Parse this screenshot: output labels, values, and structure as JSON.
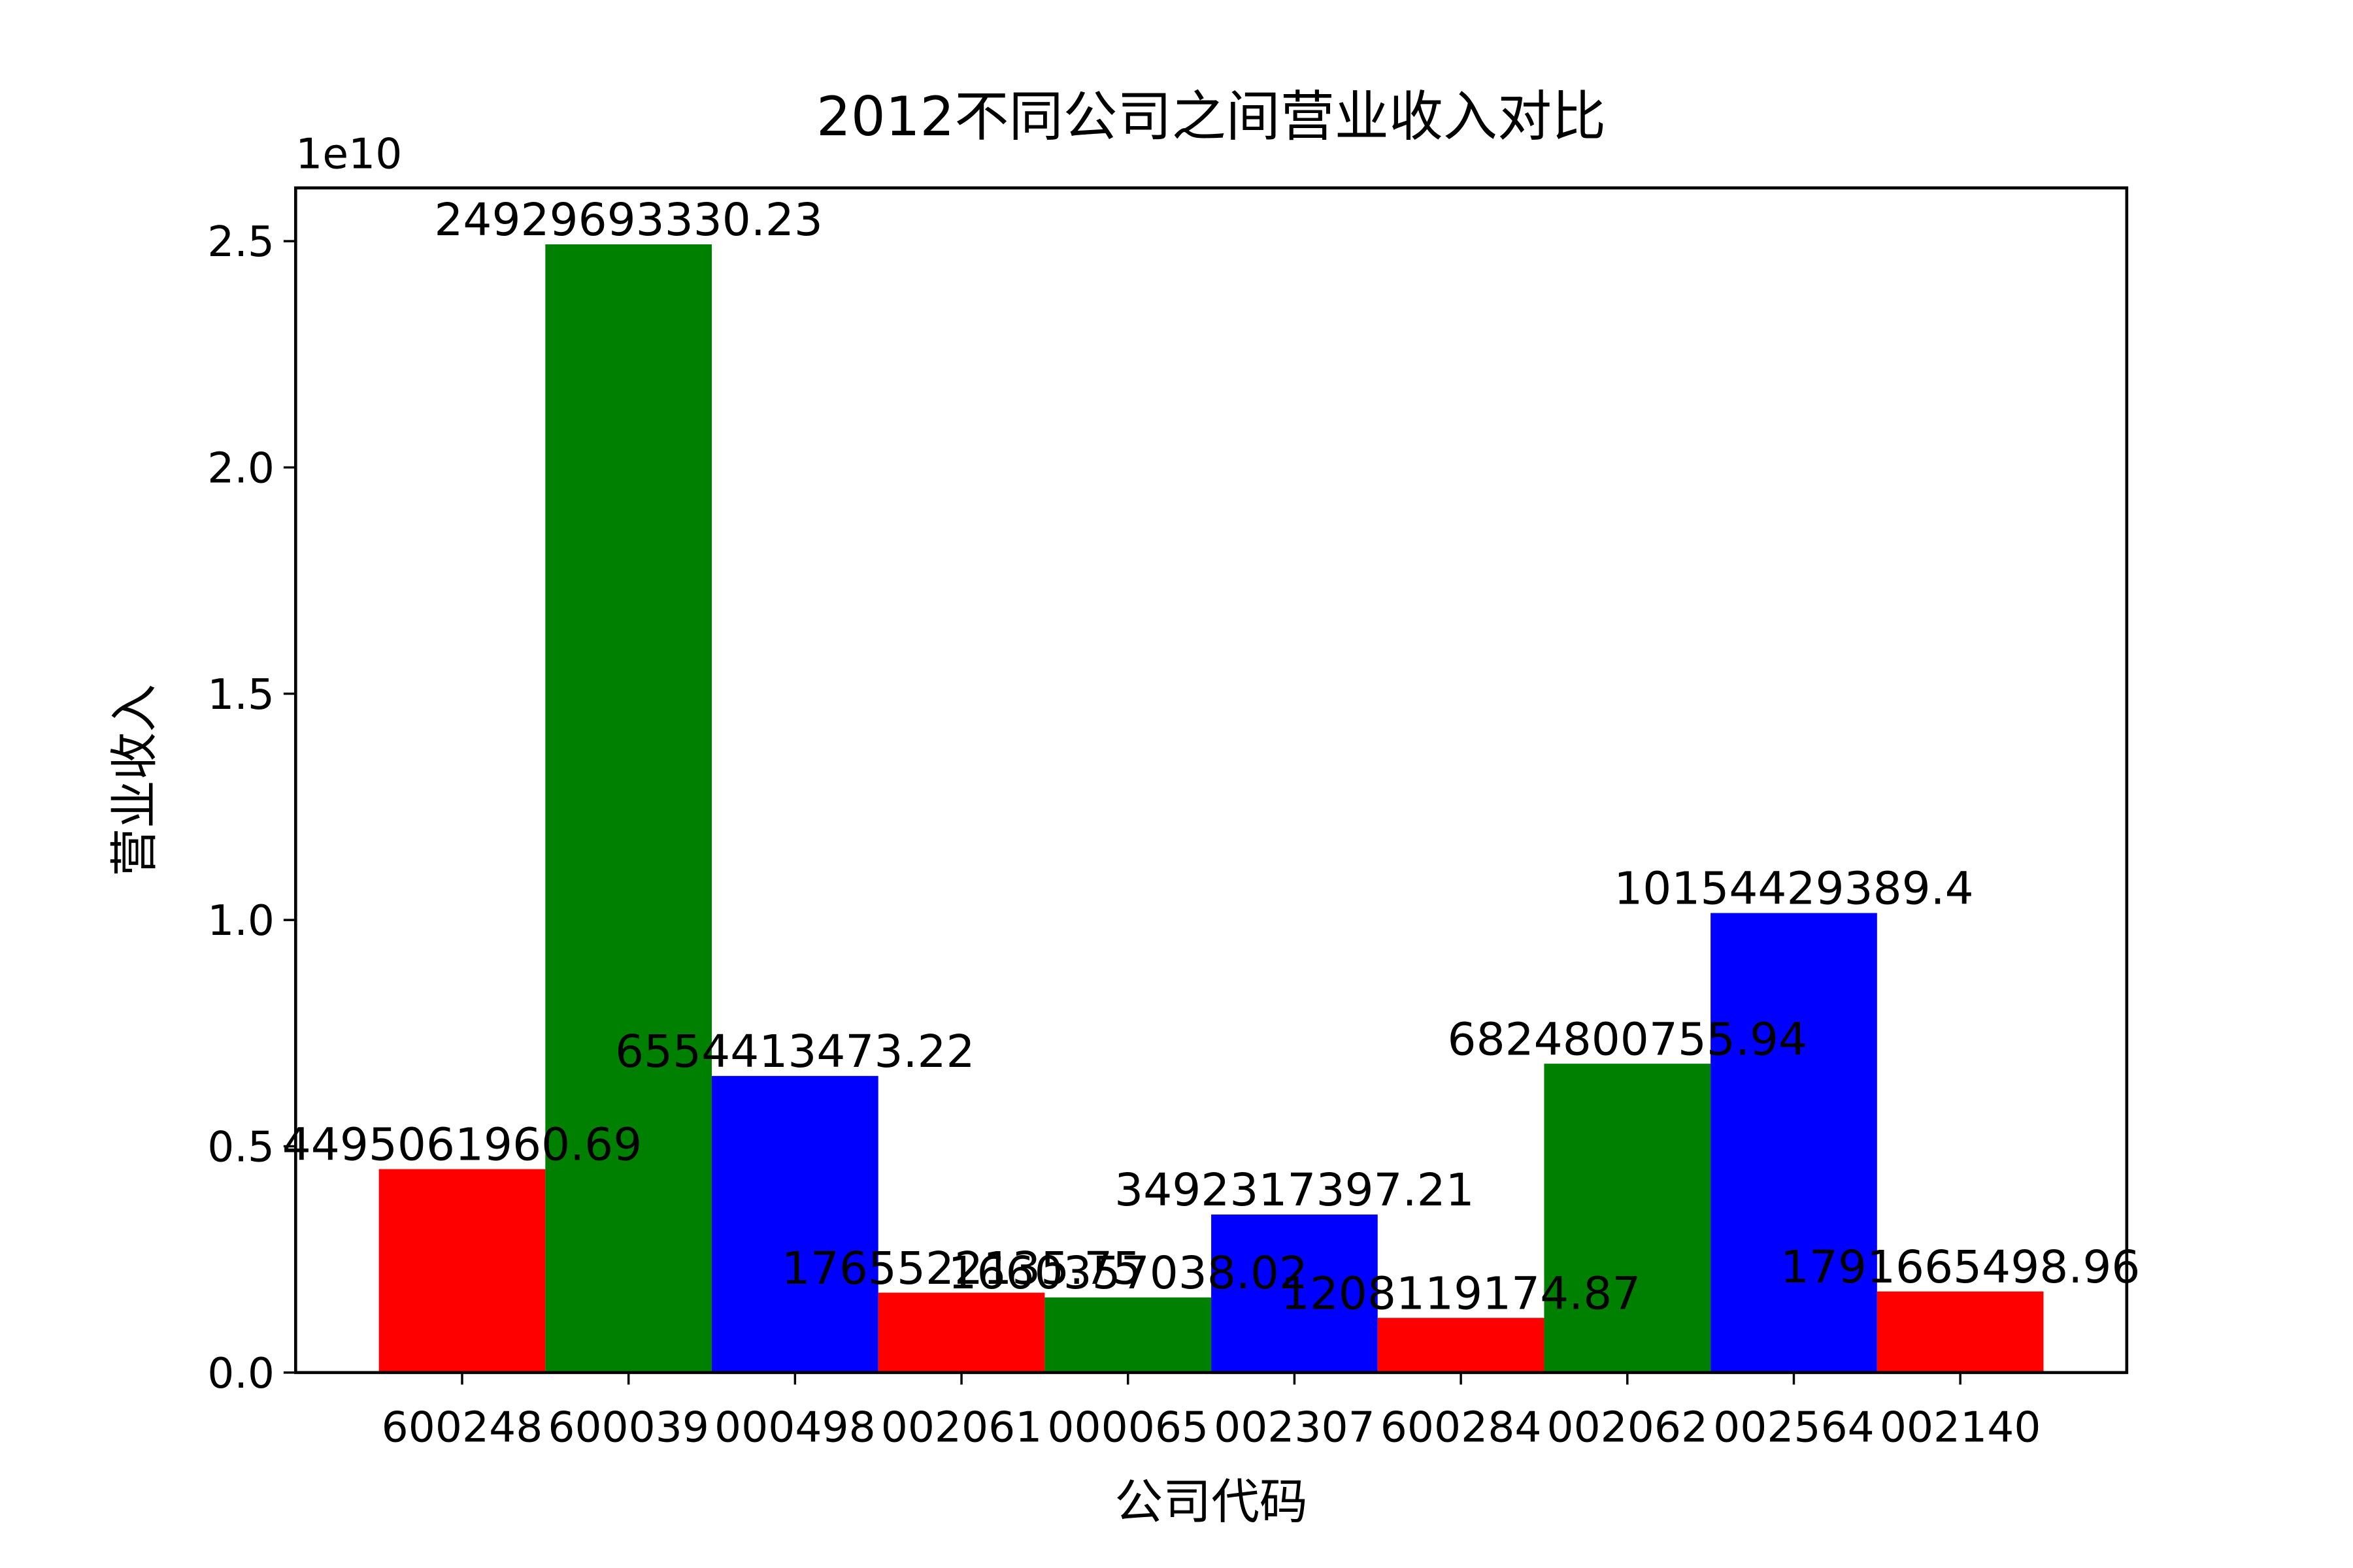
{
  "chart_data": {
    "type": "bar",
    "title": "2012不同公司之间营业收入对比",
    "xlabel": "公司代码",
    "ylabel": "营业收入",
    "y_offset_label": "1e10",
    "categories": [
      "600248",
      "600039",
      "000498",
      "002061",
      "000065",
      "002307",
      "600284",
      "002062",
      "002564",
      "002140"
    ],
    "values": [
      4495061960.69,
      24929693330.23,
      6554413473.22,
      1765522135.75,
      1660357038.02,
      3492317397.21,
      1208119174.87,
      6824800755.94,
      10154429389.4,
      1791665498.96
    ],
    "colors": [
      "#ff0000",
      "#008000",
      "#0000ff",
      "#ff0000",
      "#008000",
      "#0000ff",
      "#ff0000",
      "#008000",
      "#0000ff",
      "#ff0000"
    ],
    "xlim": [
      -1,
      10
    ],
    "ylim": [
      0,
      26176178000
    ],
    "yticks": [
      {
        "value": 0,
        "label": "0.0"
      },
      {
        "value": 5000000000,
        "label": "0.5"
      },
      {
        "value": 10000000000,
        "label": "1.0"
      },
      {
        "value": 15000000000,
        "label": "1.5"
      },
      {
        "value": 20000000000,
        "label": "2.0"
      },
      {
        "value": 25000000000,
        "label": "2.5"
      }
    ]
  }
}
